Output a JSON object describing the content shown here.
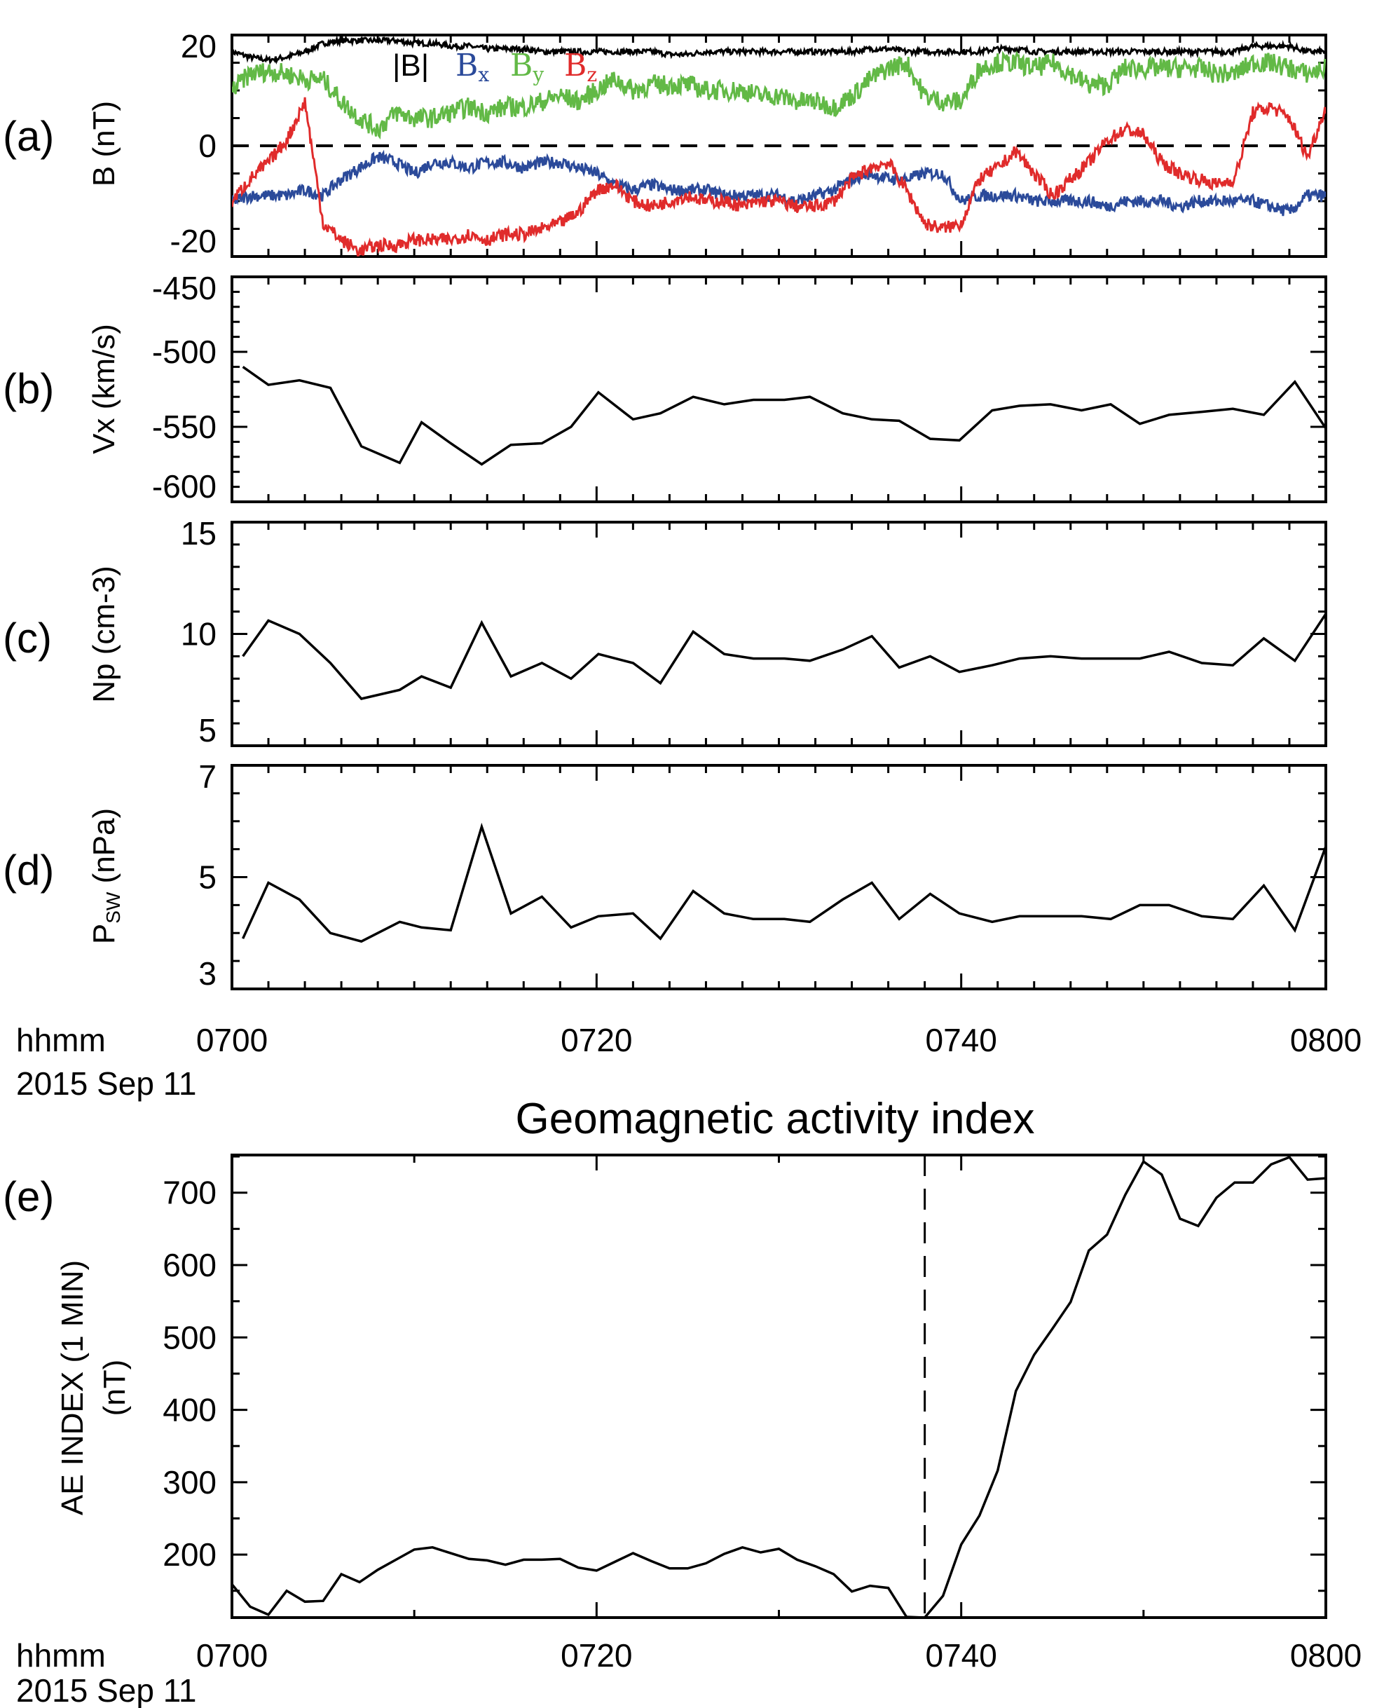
{
  "colors": {
    "Bt": "#000000",
    "Bx": "#2b4a9a",
    "By": "#62b946",
    "Bz": "#e02b2b"
  },
  "time_axis": {
    "label_top": "hhmm",
    "label_bottom": "2015 Sep 11",
    "ticks": [
      "0700",
      "0720",
      "0740",
      "0800"
    ],
    "tick_minutes": [
      0,
      20,
      40,
      60
    ]
  },
  "panel_labels": [
    "(a)",
    "(b)",
    "(c)",
    "(d)",
    "(e)"
  ],
  "axis_titles": {
    "a": "B (nT)",
    "b_main": "V",
    "b_sub": "X",
    "b_unit": " (km/s)",
    "c_main": "N",
    "c_sub": "p",
    "c_unit": " (cm",
    "c_sup": "-3",
    "c_close": ")",
    "d_main": "P",
    "d_sub": "SW",
    "d_unit": " (nPa)",
    "e_line1": "AE INDEX (1 MIN)",
    "e_line2": "(nT)"
  },
  "legend": {
    "Bt": "|B|",
    "Bx": "B",
    "Bx_sub": "x",
    "By": "B",
    "By_sub": "y",
    "Bz": "B",
    "Bz_sub": "z"
  },
  "title_e": "Geomagnetic activity index",
  "chart_data": [
    {
      "id": "a",
      "type": "line",
      "ylabel": "B (nT)",
      "ylim": [
        -20,
        20
      ],
      "yticks": [
        -20,
        0,
        20
      ],
      "yminor": 5,
      "zero_line": true,
      "x_unit": "minutes after 07:00",
      "xlim": [
        0,
        60
      ],
      "x": [
        0,
        1,
        2,
        3,
        4,
        5,
        6,
        7,
        8,
        9,
        10,
        11,
        12,
        13,
        14,
        15,
        16,
        17,
        18,
        19,
        20,
        21,
        22,
        23,
        24,
        25,
        26,
        27,
        28,
        29,
        30,
        31,
        32,
        33,
        34,
        35,
        36,
        37,
        38,
        39,
        40,
        41,
        42,
        43,
        44,
        45,
        46,
        47,
        48,
        49,
        50,
        51,
        52,
        53,
        54,
        55,
        56,
        57,
        58,
        59,
        60
      ],
      "series": [
        {
          "name": "|B|",
          "key": "Bt",
          "values": [
            17,
            16,
            15.5,
            16,
            17,
            18.5,
            19,
            19,
            19,
            19,
            18.5,
            18.5,
            18,
            18,
            17.5,
            17.5,
            17.5,
            17,
            17,
            17,
            17,
            17,
            17,
            17,
            16.5,
            16.5,
            17,
            17,
            17,
            17,
            17,
            17,
            17,
            17,
            17,
            17.5,
            17.5,
            17,
            17,
            17,
            17,
            17,
            17.5,
            17.5,
            17,
            17,
            17,
            17,
            17,
            17,
            17,
            17,
            17,
            17,
            17,
            17,
            18,
            18,
            18,
            17,
            17
          ]
        },
        {
          "name": "Bx",
          "key": "Bx",
          "values": [
            -10,
            -9,
            -9,
            -9,
            -8,
            -9,
            -6,
            -4,
            -2,
            -3,
            -5,
            -3,
            -3,
            -4,
            -3,
            -3,
            -4,
            -3,
            -3,
            -4,
            -5,
            -7,
            -8,
            -7,
            -8,
            -8,
            -8,
            -9,
            -9,
            -9,
            -9,
            -10,
            -9,
            -8,
            -6,
            -5,
            -6,
            -6,
            -5,
            -5,
            -10,
            -9,
            -9,
            -9,
            -10,
            -10,
            -10,
            -10,
            -11,
            -10,
            -10,
            -10,
            -11,
            -10,
            -10,
            -10,
            -10,
            -11,
            -12,
            -9,
            -9
          ]
        },
        {
          "name": "By",
          "key": "By",
          "values": [
            10,
            13,
            13.5,
            13,
            12,
            12,
            8,
            5,
            3,
            6,
            5,
            5,
            6,
            7,
            6,
            7,
            7,
            8,
            9,
            8,
            10,
            12,
            10,
            11,
            11,
            11,
            10,
            10,
            10,
            9,
            9,
            8,
            8,
            7,
            9,
            12,
            14,
            15,
            9,
            8,
            8,
            14,
            15,
            15,
            14,
            15,
            13,
            11,
            11,
            14,
            14,
            14,
            14,
            14,
            13,
            13,
            15,
            15,
            14,
            13,
            14
          ]
        },
        {
          "name": "Bz",
          "key": "Bz",
          "values": [
            -10,
            -6,
            -3,
            1,
            8,
            -14,
            -17,
            -19,
            -18,
            -18,
            -17,
            -17,
            -17,
            -16,
            -17,
            -16,
            -16,
            -15,
            -14,
            -12,
            -8,
            -7,
            -10,
            -11,
            -10,
            -9,
            -10,
            -10,
            -11,
            -10,
            -10,
            -11,
            -11,
            -10,
            -6,
            -4,
            -3,
            -8,
            -14,
            -15,
            -14,
            -6,
            -4,
            -1,
            -5,
            -9,
            -6,
            -3,
            1,
            3,
            2,
            -3,
            -5,
            -6,
            -7,
            -6,
            6,
            7,
            5,
            -2,
            7
          ]
        }
      ]
    },
    {
      "id": "b",
      "type": "line",
      "ylabel": "Vx (km/s)",
      "ylim": [
        -600,
        -450
      ],
      "yticks": [
        -600,
        -550,
        -500,
        -450
      ],
      "yminor": 10,
      "x": [
        0.6,
        2.0,
        3.7,
        5.4,
        7.1,
        9.2,
        10.4,
        12.0,
        13.7,
        15.3,
        17.0,
        18.6,
        20.1,
        22.0,
        23.5,
        25.3,
        27.0,
        28.6,
        30.3,
        31.7,
        33.5,
        35.1,
        36.6,
        38.3,
        39.9,
        41.7,
        43.2,
        44.9,
        46.6,
        48.2,
        49.8,
        51.4,
        53.2,
        54.9,
        56.6,
        58.3,
        60.0
      ],
      "values": [
        -510,
        -522,
        -519,
        -524,
        -563,
        -574,
        -547,
        -561,
        -575,
        -562,
        -561,
        -550,
        -527,
        -545,
        -541,
        -530,
        -535,
        -532,
        -532,
        -530,
        -541,
        -545,
        -546,
        -558,
        -559,
        -539,
        -536,
        -535,
        -539,
        -535,
        -548,
        -542,
        -540,
        -538,
        -542,
        -520,
        -551
      ]
    },
    {
      "id": "c",
      "type": "line",
      "ylabel": "Np (cm-3)",
      "ylim": [
        5,
        15
      ],
      "yticks": [
        5,
        10,
        15
      ],
      "yminor": 1,
      "x": [
        0.6,
        2.0,
        3.7,
        5.4,
        7.1,
        9.2,
        10.4,
        12.0,
        13.7,
        15.3,
        17.0,
        18.6,
        20.1,
        22.0,
        23.5,
        25.3,
        27.0,
        28.6,
        30.3,
        31.7,
        33.5,
        35.1,
        36.6,
        38.3,
        39.9,
        41.7,
        43.2,
        44.9,
        46.6,
        48.2,
        49.8,
        51.4,
        53.2,
        54.9,
        56.6,
        58.3,
        60.0
      ],
      "values": [
        9,
        10.6,
        10,
        8.7,
        7.1,
        7.5,
        8.1,
        7.6,
        10.5,
        8.1,
        8.7,
        8,
        9.1,
        8.7,
        7.8,
        10.1,
        9.1,
        8.9,
        8.9,
        8.8,
        9.3,
        9.9,
        8.5,
        9,
        8.3,
        8.6,
        8.9,
        9,
        8.9,
        8.9,
        8.9,
        9.2,
        8.7,
        8.6,
        9.8,
        8.8,
        10.9
      ]
    },
    {
      "id": "d",
      "type": "line",
      "ylabel": "PSW (nPa)",
      "ylim": [
        3,
        7
      ],
      "yticks": [
        3,
        5,
        7
      ],
      "yminor": 0.5,
      "x": [
        0.6,
        2.0,
        3.7,
        5.4,
        7.1,
        9.2,
        10.4,
        12.0,
        13.7,
        15.3,
        17.0,
        18.6,
        20.1,
        22.0,
        23.5,
        25.3,
        27.0,
        28.6,
        30.3,
        31.7,
        33.5,
        35.1,
        36.6,
        38.3,
        39.9,
        41.7,
        43.2,
        44.9,
        46.6,
        48.2,
        49.8,
        51.4,
        53.2,
        54.9,
        56.6,
        58.3,
        60.0
      ],
      "values": [
        3.9,
        4.9,
        4.6,
        4.0,
        3.85,
        4.2,
        4.1,
        4.05,
        5.9,
        4.35,
        4.65,
        4.1,
        4.3,
        4.35,
        3.9,
        4.75,
        4.35,
        4.25,
        4.25,
        4.2,
        4.6,
        4.9,
        4.25,
        4.7,
        4.35,
        4.2,
        4.3,
        4.3,
        4.3,
        4.25,
        4.5,
        4.5,
        4.3,
        4.25,
        4.85,
        4.05,
        5.55
      ]
    },
    {
      "id": "e",
      "type": "line",
      "title": "Geomagnetic activity index",
      "ylabel": "AE INDEX (1 MIN) (nT)",
      "ylim": [
        113,
        752
      ],
      "yticks": [
        200,
        300,
        400,
        500,
        600,
        700
      ],
      "yminor": 50,
      "vline_minute": 38,
      "x": [
        0,
        1,
        2,
        3,
        4,
        5,
        6,
        7,
        8,
        9,
        10,
        11,
        12,
        13,
        14,
        15,
        16,
        17,
        18,
        19,
        20,
        21,
        22,
        23,
        24,
        25,
        26,
        27,
        28,
        29,
        30,
        31,
        32,
        33,
        34,
        35,
        36,
        37,
        38,
        39,
        40,
        41,
        42,
        43,
        44,
        45,
        46,
        47,
        48,
        49,
        50,
        51,
        52,
        53,
        54,
        55,
        56,
        57,
        58,
        59,
        60
      ],
      "values": [
        159,
        128,
        117,
        150,
        135,
        136,
        173,
        162,
        179,
        193,
        207,
        210,
        202,
        194,
        192,
        186,
        193,
        193,
        194,
        182,
        178,
        190,
        202,
        191,
        181,
        181,
        188,
        201,
        210,
        203,
        208,
        193,
        184,
        173,
        149,
        157,
        154,
        114,
        113,
        143,
        214,
        254,
        316,
        426,
        476,
        512,
        549,
        620,
        642,
        697,
        743,
        725,
        664,
        654,
        693,
        714,
        714,
        739,
        749,
        718,
        720
      ]
    }
  ]
}
